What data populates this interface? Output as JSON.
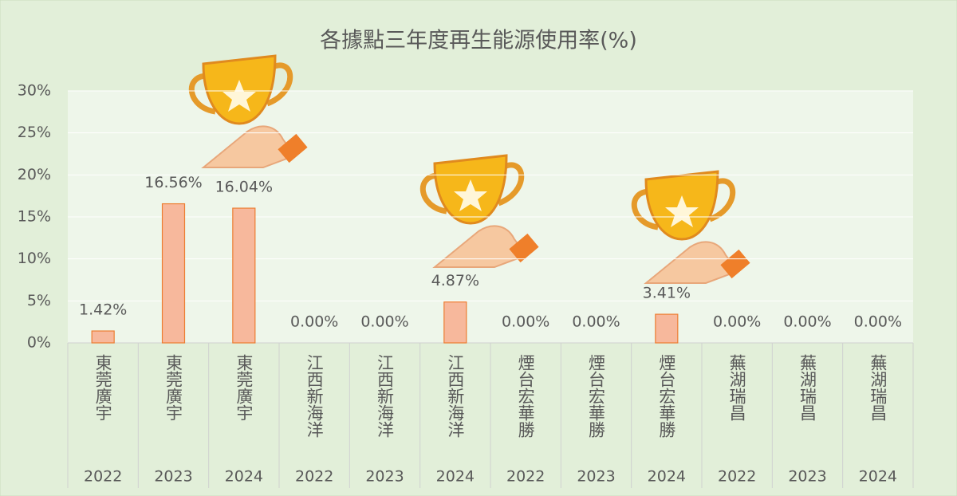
{
  "chart_data": {
    "type": "bar",
    "title": "各據點三年度再生能源使用率(%)",
    "categories": [
      "東莞廣宇",
      "東莞廣宇",
      "東莞廣宇",
      "江西新海洋",
      "江西新海洋",
      "江西新海洋",
      "煙台宏華勝",
      "煙台宏華勝",
      "煙台宏華勝",
      "蕪湖瑞昌",
      "蕪湖瑞昌",
      "蕪湖瑞昌"
    ],
    "years": [
      "2022",
      "2023",
      "2024",
      "2022",
      "2023",
      "2024",
      "2022",
      "2023",
      "2024",
      "2022",
      "2023",
      "2024"
    ],
    "values": [
      1.42,
      16.56,
      16.04,
      0,
      0,
      4.87,
      0,
      0,
      3.41,
      0,
      0,
      0
    ],
    "value_labels": [
      "1.42%",
      "16.56%",
      "16.04%",
      "0.00%",
      "0.00%",
      "4.87%",
      "0.00%",
      "0.00%",
      "3.41%",
      "0.00%",
      "0.00%",
      "0.00%"
    ],
    "color": "#f7b89c",
    "ylim": [
      0,
      30
    ],
    "yticks": [
      {
        "value": 0,
        "label": "0%"
      },
      {
        "value": 5,
        "label": "5%"
      },
      {
        "value": 10,
        "label": "10%"
      },
      {
        "value": 15,
        "label": "15%"
      },
      {
        "value": 20,
        "label": "20%"
      },
      {
        "value": 25,
        "label": "25%"
      },
      {
        "value": 30,
        "label": "30%"
      }
    ],
    "grid": true
  }
}
